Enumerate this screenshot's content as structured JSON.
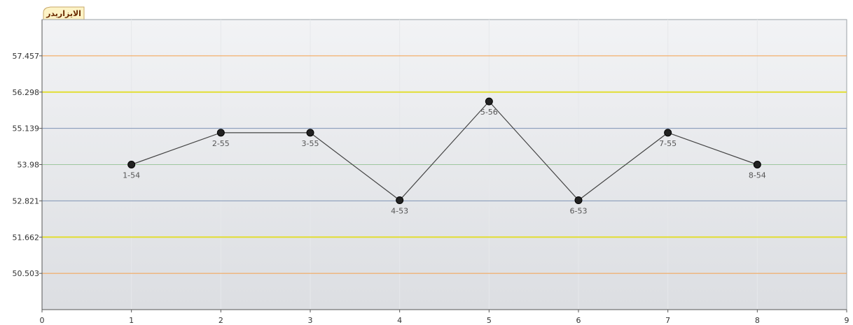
{
  "tab": {
    "label": "الايزاريدر"
  },
  "colors": {
    "plot_top": "#f2f3f5",
    "plot_bottom": "#dcdee2",
    "line": "#444444",
    "marker": "#222222",
    "tab_fill": "#fdf3c6",
    "tab_border": "#c8a96a"
  },
  "chart_data": {
    "type": "line",
    "title": "",
    "xlabel": "",
    "ylabel": "",
    "xlim": [
      0,
      9
    ],
    "ylim": [
      49.344,
      58.616
    ],
    "x_ticks": [
      0,
      1,
      2,
      3,
      4,
      5,
      6,
      7,
      8,
      9
    ],
    "y_ticks": [
      "50.503",
      "51.662",
      "52.821",
      "53.98",
      "55.139",
      "56.298",
      "57.457"
    ],
    "grid": true,
    "control_lines": [
      {
        "value": 57.457,
        "color": "#f5a04a"
      },
      {
        "value": 56.298,
        "color": "#e2dd33"
      },
      {
        "value": 55.139,
        "color": "#7f93b5"
      },
      {
        "value": 53.98,
        "color": "#9ec79e"
      },
      {
        "value": 52.821,
        "color": "#7f93b5"
      },
      {
        "value": 51.662,
        "color": "#e2dd33"
      },
      {
        "value": 50.503,
        "color": "#f5a04a"
      }
    ],
    "series": [
      {
        "x": [
          1,
          2,
          3,
          4,
          5,
          6,
          7,
          8
        ],
        "y": [
          53.98,
          55.0,
          55.0,
          52.84,
          56.0,
          52.84,
          55.0,
          53.98
        ],
        "labels": [
          "1-54",
          "2-55",
          "3-55",
          "4-53",
          "5-56",
          "6-53",
          "7-55",
          "8-54"
        ]
      }
    ]
  }
}
